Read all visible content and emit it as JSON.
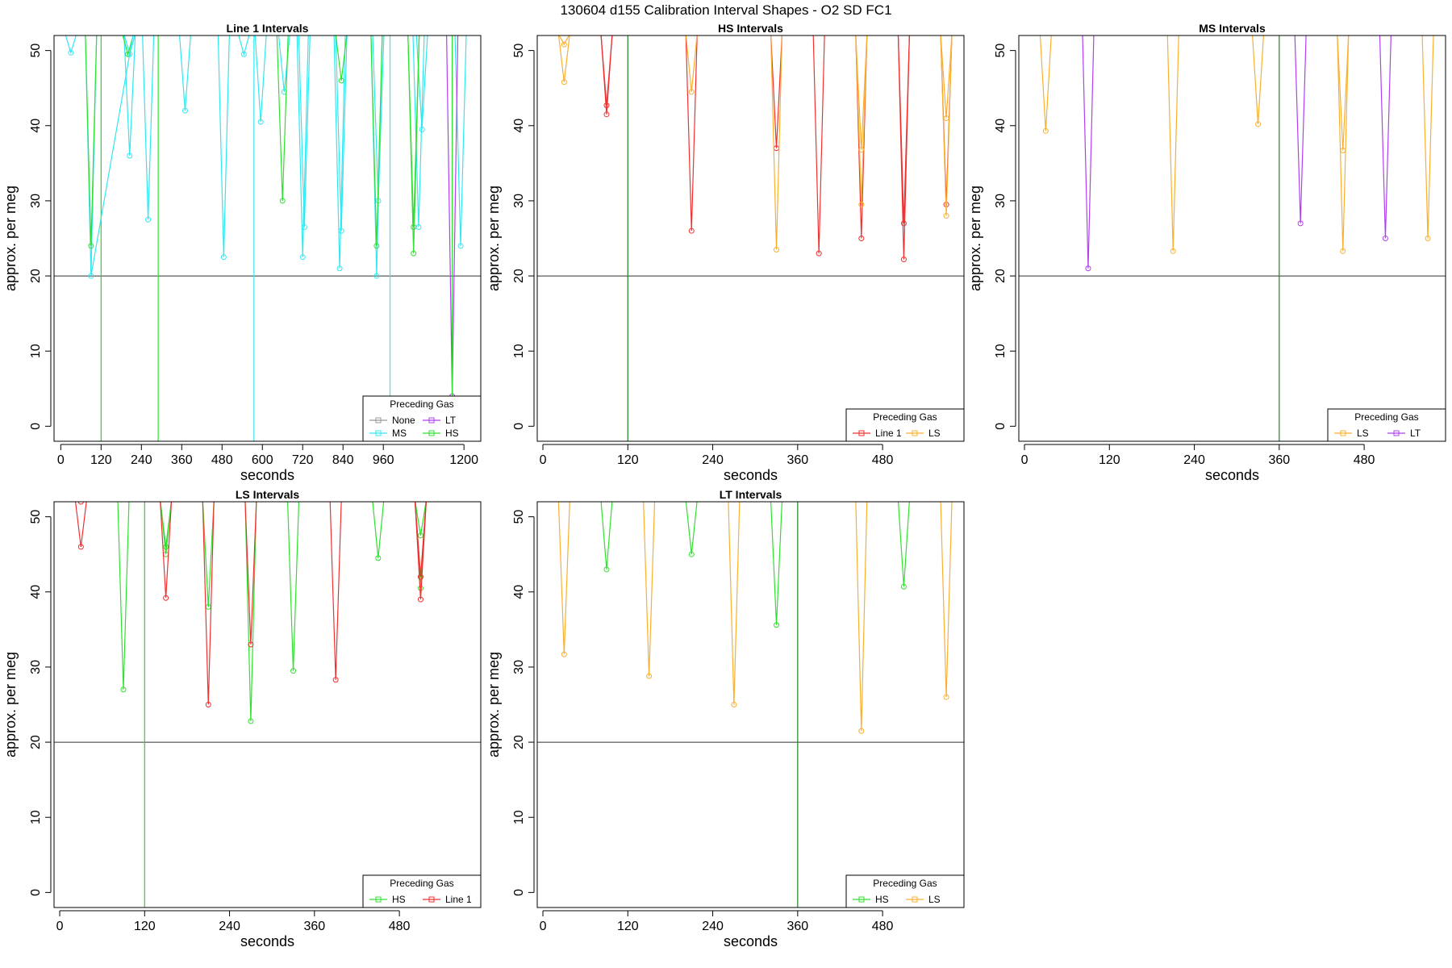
{
  "figure_title": "130604   d155   Calibration Interval Shapes - O2 SD FC1",
  "chart_data": [
    {
      "type": "line",
      "title": "Line 1 Intervals",
      "xlabel": "seconds",
      "ylabel": "approx. per meg",
      "xlim": [
        -20,
        1250
      ],
      "ylim": [
        -2,
        52
      ],
      "xticks": [
        0,
        120,
        240,
        360,
        480,
        600,
        720,
        840,
        960,
        1200
      ],
      "xtick_labels": [
        "0",
        "120",
        "240",
        "360",
        "480",
        "600",
        "720",
        "840",
        "960",
        "1200"
      ],
      "yticks": [
        0,
        10,
        20,
        30,
        40,
        50
      ],
      "ytick_labels": [
        "0",
        "10",
        "20",
        "30",
        "40",
        "50"
      ],
      "hline": 20,
      "legend": {
        "title": "Preceding Gas",
        "position": "bottom-right",
        "columns": 2,
        "entries": [
          {
            "name": "None",
            "color": "#999999"
          },
          {
            "name": "LT",
            "color": "#B040F0"
          },
          {
            "name": "MS",
            "color": "#30E8F0"
          },
          {
            "name": "HS",
            "color": "#30E030"
          }
        ]
      },
      "vlines": [
        {
          "x": 120,
          "color": "#30D030"
        },
        {
          "x": 290,
          "color": "#30E030"
        },
        {
          "x": 575,
          "color": "#30E8F0"
        },
        {
          "x": 980,
          "color": "#30E8F0"
        }
      ],
      "series": [
        {
          "name": "MS",
          "color": "#30E8F0",
          "points": [
            [
              30,
              49.7
            ],
            [
              90,
              20
            ],
            [
              205,
              36
            ],
            [
              205,
              49.5
            ],
            [
              260,
              27.5
            ],
            [
              370,
              42
            ],
            [
              485,
              22.5
            ],
            [
              545,
              49.5
            ],
            [
              595,
              40.5
            ],
            [
              665,
              44.5
            ],
            [
              720,
              22.5
            ],
            [
              725,
              26.5
            ],
            [
              830,
              21
            ],
            [
              835,
              26
            ],
            [
              940,
              20
            ],
            [
              945,
              30
            ],
            [
              1065,
              26.5
            ],
            [
              1075,
              39.5
            ],
            [
              1190,
              24
            ]
          ]
        },
        {
          "name": "HS",
          "color": "#30E030",
          "points": [
            [
              90,
              24
            ],
            [
              200,
              49.5
            ],
            [
              660,
              30
            ],
            [
              835,
              46
            ],
            [
              940,
              24
            ],
            [
              1050,
              23
            ],
            [
              1050,
              26.5
            ]
          ]
        },
        {
          "name": "LT",
          "color": "#B040F0",
          "points": [
            [
              1165,
              4
            ]
          ]
        }
      ],
      "segments": [
        {
          "color": "#30E8F0",
          "points": [
            [
              90,
              20
            ],
            [
              205,
              49.5
            ],
            [
              215,
              52
            ]
          ]
        },
        {
          "color": "#30E030",
          "points": [
            [
              1165,
              52
            ],
            [
              1165,
              4
            ]
          ]
        }
      ]
    },
    {
      "type": "line",
      "title": "HS Intervals",
      "xlabel": "seconds",
      "ylabel": "approx. per meg",
      "xlim": [
        -8,
        595
      ],
      "ylim": [
        -2,
        52
      ],
      "xticks": [
        0,
        120,
        240,
        360,
        480
      ],
      "xtick_labels": [
        "0",
        "120",
        "240",
        "360",
        "480"
      ],
      "yticks": [
        0,
        10,
        20,
        30,
        40,
        50
      ],
      "ytick_labels": [
        "0",
        "10",
        "20",
        "30",
        "40",
        "50"
      ],
      "hline": 20,
      "legend": {
        "title": "Preceding Gas",
        "position": "bottom-right",
        "columns": 2,
        "entries": [
          {
            "name": "Line 1",
            "color": "#F03030"
          },
          {
            "name": "LS",
            "color": "#F8B030"
          }
        ]
      },
      "vlines": [
        {
          "x": 120,
          "color": "#208020"
        }
      ],
      "series": [
        {
          "name": "Line 1",
          "color": "#F03030",
          "points": [
            [
              90,
              41.5
            ],
            [
              90,
              42.7
            ],
            [
              210,
              26
            ],
            [
              330,
              37
            ],
            [
              390,
              23
            ],
            [
              450,
              25
            ],
            [
              510,
              27
            ],
            [
              510,
              22.2
            ],
            [
              570,
              29.5
            ]
          ]
        },
        {
          "name": "LS",
          "color": "#F8B030",
          "points": [
            [
              30,
              50.8
            ],
            [
              30,
              45.8
            ],
            [
              210,
              44.5
            ],
            [
              330,
              23.5
            ],
            [
              450,
              36.8
            ],
            [
              450,
              29.5
            ],
            [
              570,
              28
            ],
            [
              570,
              41
            ]
          ]
        }
      ]
    },
    {
      "type": "line",
      "title": "MS Intervals",
      "xlabel": "seconds",
      "ylabel": "approx. per meg",
      "xlim": [
        -8,
        595
      ],
      "ylim": [
        -2,
        52
      ],
      "xticks": [
        0,
        120,
        240,
        360,
        480
      ],
      "xtick_labels": [
        "0",
        "120",
        "240",
        "360",
        "480"
      ],
      "yticks": [
        0,
        10,
        20,
        30,
        40,
        50
      ],
      "ytick_labels": [
        "0",
        "10",
        "20",
        "30",
        "40",
        "50"
      ],
      "hline": 20,
      "legend": {
        "title": "Preceding Gas",
        "position": "bottom-right",
        "columns": 2,
        "entries": [
          {
            "name": "LS",
            "color": "#F8B030"
          },
          {
            "name": "LT",
            "color": "#B040F0"
          }
        ]
      },
      "vlines": [
        {
          "x": 360,
          "color": "#208020"
        }
      ],
      "series": [
        {
          "name": "LS",
          "color": "#F8B030",
          "points": [
            [
              30,
              39.3
            ],
            [
              210,
              23.3
            ],
            [
              330,
              40.2
            ],
            [
              450,
              36.7
            ],
            [
              450,
              23.3
            ],
            [
              570,
              25
            ]
          ]
        },
        {
          "name": "LT",
          "color": "#B040F0",
          "points": [
            [
              90,
              21
            ],
            [
              390,
              27
            ],
            [
              510,
              25
            ]
          ]
        }
      ]
    },
    {
      "type": "line",
      "title": "LS Intervals",
      "xlabel": "seconds",
      "ylabel": "approx. per meg",
      "xlim": [
        -8,
        595
      ],
      "ylim": [
        -2,
        52
      ],
      "xticks": [
        0,
        120,
        240,
        360,
        480
      ],
      "xtick_labels": [
        "0",
        "120",
        "240",
        "360",
        "480"
      ],
      "yticks": [
        0,
        10,
        20,
        30,
        40,
        50
      ],
      "ytick_labels": [
        "0",
        "10",
        "20",
        "30",
        "40",
        "50"
      ],
      "hline": 20,
      "legend": {
        "title": "Preceding Gas",
        "position": "bottom-right",
        "columns": 2,
        "entries": [
          {
            "name": "HS",
            "color": "#30E030"
          },
          {
            "name": "Line 1",
            "color": "#F03030"
          }
        ]
      },
      "vlines": [
        {
          "x": 120,
          "color": "#30D030"
        }
      ],
      "series": [
        {
          "name": "HS",
          "color": "#30E030",
          "points": [
            [
              90,
              27
            ],
            [
              150,
              46
            ],
            [
              150,
              45
            ],
            [
              210,
              38
            ],
            [
              270,
              22.8
            ],
            [
              330,
              29.5
            ],
            [
              450,
              44.5
            ],
            [
              510,
              47.5
            ],
            [
              510,
              42
            ],
            [
              510,
              40.5
            ]
          ]
        },
        {
          "name": "Line 1",
          "color": "#F03030",
          "points": [
            [
              30,
              52
            ],
            [
              30,
              46
            ],
            [
              150,
              39.2
            ],
            [
              210,
              25
            ],
            [
              270,
              33
            ],
            [
              390,
              28.3
            ],
            [
              510,
              39
            ],
            [
              510,
              42
            ]
          ]
        }
      ]
    },
    {
      "type": "line",
      "title": "LT Intervals",
      "xlabel": "seconds",
      "ylabel": "approx. per meg",
      "xlim": [
        -8,
        595
      ],
      "ylim": [
        -2,
        52
      ],
      "xticks": [
        0,
        120,
        240,
        360,
        480
      ],
      "xtick_labels": [
        "0",
        "120",
        "240",
        "360",
        "480"
      ],
      "yticks": [
        0,
        10,
        20,
        30,
        40,
        50
      ],
      "ytick_labels": [
        "0",
        "10",
        "20",
        "30",
        "40",
        "50"
      ],
      "hline": 20,
      "legend": {
        "title": "Preceding Gas",
        "position": "bottom-right",
        "columns": 2,
        "entries": [
          {
            "name": "HS",
            "color": "#30E030"
          },
          {
            "name": "LS",
            "color": "#F8B030"
          }
        ]
      },
      "vlines": [
        {
          "x": 360,
          "color": "#208020"
        }
      ],
      "series": [
        {
          "name": "HS",
          "color": "#30E030",
          "points": [
            [
              90,
              43
            ],
            [
              210,
              45
            ],
            [
              330,
              35.6
            ],
            [
              510,
              40.7
            ]
          ]
        },
        {
          "name": "LS",
          "color": "#F8B030",
          "points": [
            [
              30,
              31.7
            ],
            [
              150,
              28.8
            ],
            [
              270,
              25
            ],
            [
              450,
              21.5
            ],
            [
              570,
              26
            ]
          ]
        }
      ]
    }
  ]
}
